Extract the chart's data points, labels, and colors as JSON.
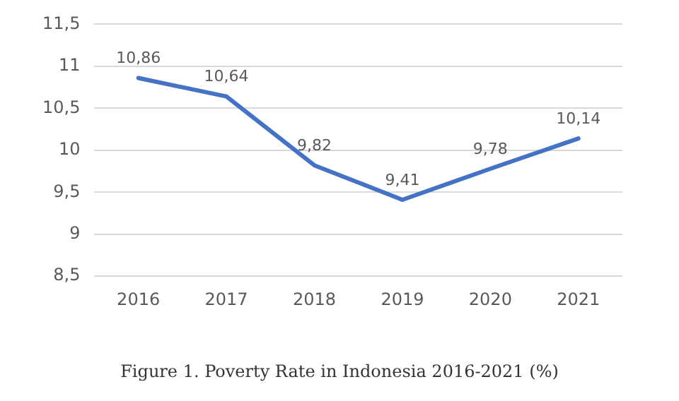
{
  "chart_data": {
    "type": "line",
    "title": "Figure 1. Poverty Rate in Indonesia 2016-2021 (%)",
    "categories": [
      "2016",
      "2017",
      "2018",
      "2019",
      "2020",
      "2021"
    ],
    "series": [
      {
        "color": "#4472c4",
        "values": [
          10.86,
          10.64,
          9.82,
          9.41,
          9.78,
          10.14
        ],
        "value_labels": [
          "10,86",
          "10,64",
          "9,82",
          "9,41",
          "9,78",
          "10,14"
        ]
      }
    ],
    "ylim": [
      8.5,
      11.5
    ],
    "yticks": [
      {
        "value": 8.5,
        "label": "8,5"
      },
      9,
      {
        "value": 9.5,
        "label": "9,5"
      },
      10,
      {
        "value": 10.5,
        "label": "10,5"
      },
      11,
      {
        "value": 11.5,
        "label": "11,5"
      }
    ],
    "grid": "y",
    "legend": false,
    "marker": "none",
    "line_style": "solid"
  }
}
